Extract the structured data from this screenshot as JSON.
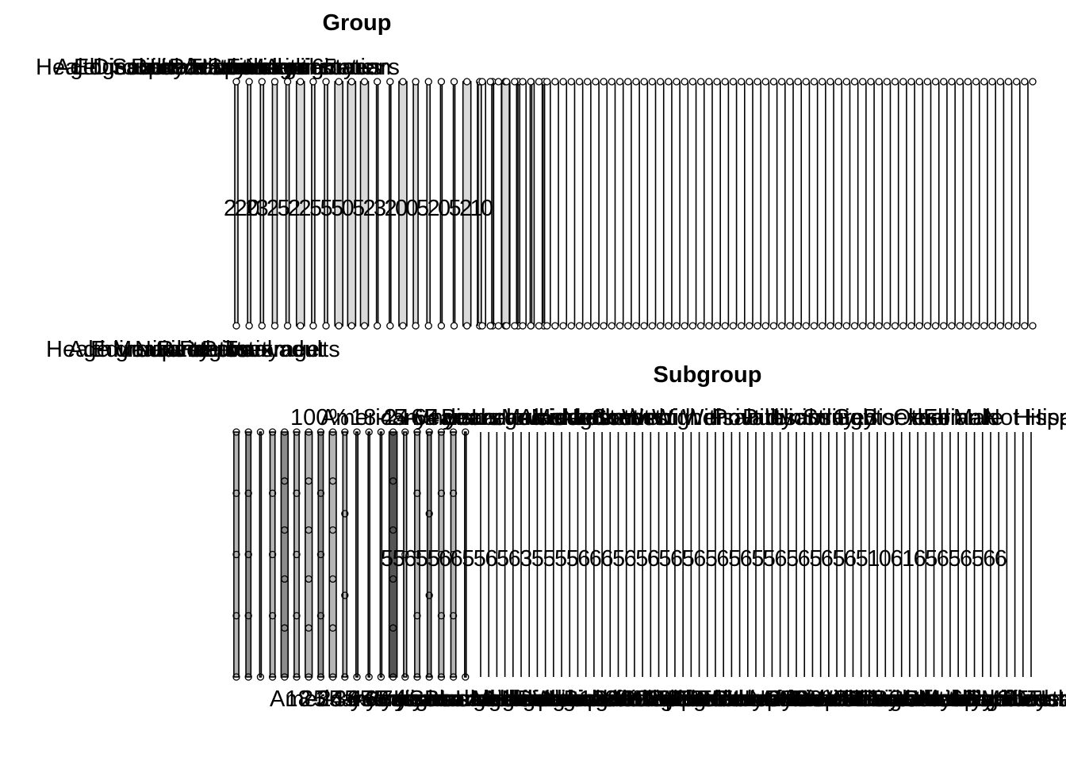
{
  "chart_data": [
    {
      "type": "bar",
      "title": "Group",
      "top_labels": [
        "Health insurance coverage",
        "Age groups",
        "Educational attainment",
        "Disability status",
        "Sex",
        "Race/Hispanic origin",
        "Urbanization",
        "Poverty level",
        "Total",
        "Sexual orientation",
        "Family income",
        "Marital status",
        "Age 65 years"
      ],
      "mid_values": [
        "2",
        "20",
        "2",
        "3",
        "2",
        "5",
        "2",
        "2",
        "5",
        "5",
        "5",
        "0",
        "5",
        "2",
        "3",
        "2",
        "0",
        "0",
        "5",
        "2",
        "0",
        "5",
        "2",
        "1",
        "0"
      ],
      "bottom_labels": [
        "Health insurance coverage",
        "Age groups and sex",
        "Educational attainment",
        "Marital status",
        "Nativity",
        "Race",
        "Region",
        "Poverty",
        "Total adults"
      ],
      "series": [
        {
          "values": [
            2,
            2,
            2,
            3,
            2,
            5,
            2,
            2,
            5,
            5,
            5,
            1,
            1,
            5,
            3,
            2,
            1,
            1,
            5,
            2,
            1,
            5,
            2,
            1,
            1
          ]
        }
      ],
      "empty_columns": 69
    },
    {
      "type": "bar",
      "title": "Subgroup",
      "top_labels": [
        "100%",
        "American Indian or Alaska Native",
        "18-24 years",
        "45-64 years",
        "65 years and older",
        "Bachelor's degree or higher",
        "Large central metro",
        "Married",
        "Midwest",
        "Northeast",
        "South",
        "West",
        "With disability",
        "Without disability",
        "Private",
        "Public",
        "Uninsured",
        "Straight",
        "Gay or lesbian",
        "Bisexual",
        "Other",
        "Female",
        "Male",
        "Not Hispanic or Latino",
        "Hispanic or Latino"
      ],
      "mid_values": [
        "5",
        "5",
        "6",
        "5",
        "5",
        "6",
        "6",
        "5",
        "5",
        "6",
        "5",
        "6",
        "3",
        "5",
        "5",
        "5",
        "5",
        "6",
        "6",
        "6",
        "5",
        "6",
        "5",
        "6",
        "5",
        "6",
        "5",
        "6",
        "5",
        "6",
        "5",
        "6",
        "5",
        "5",
        "6",
        "5",
        "6",
        "5",
        "6",
        "5",
        "6",
        "5",
        "1",
        "0",
        "6",
        "1",
        "6",
        "5",
        "6",
        "5",
        "6",
        "5",
        "6",
        "6"
      ],
      "bottom_labels": [
        "American Indian or Alaska Native",
        "18-24 years",
        "25-34 years",
        "35-44 years",
        "45-64 years",
        "65-74 years",
        "75 years and older",
        "Less than high school",
        "High school diploma or GED",
        "Some college",
        "Bachelor's degree or higher",
        "Large central metro",
        "Large fringe metro",
        "Medium and small metro",
        "Nonmetropolitan",
        "Never married",
        "Divorced or separated",
        "Widowed",
        "Living with a partner",
        "Below 100% FPL",
        "100% to less than 200% FPL",
        "200% to less than 400% FPL",
        "400% FPL or more",
        "U.S.-born",
        "Foreign-born",
        "White only",
        "Black or African American only",
        "Asian only",
        "Native Hawaiian or Other Pacific Islander only",
        "Two or more races",
        "Hispanic or Latino",
        "Not Hispanic or Latino",
        "Private",
        "Medicaid or other public",
        "Uninsured",
        "With disability",
        "Without disability",
        "Straight",
        "Gay or lesbian",
        "Bisexual",
        "Something else",
        "Female",
        "Male",
        "Under 65 years",
        "65 years and over",
        "Northeast",
        "Midwest",
        "South",
        "West",
        "Total"
      ],
      "series": [
        {
          "values": [
            5,
            5,
            1,
            5,
            7,
            5,
            7,
            5,
            7,
            4,
            2,
            1,
            1,
            8,
            3,
            5,
            4,
            5,
            5,
            1
          ]
        }
      ],
      "empty_columns": 69
    }
  ]
}
